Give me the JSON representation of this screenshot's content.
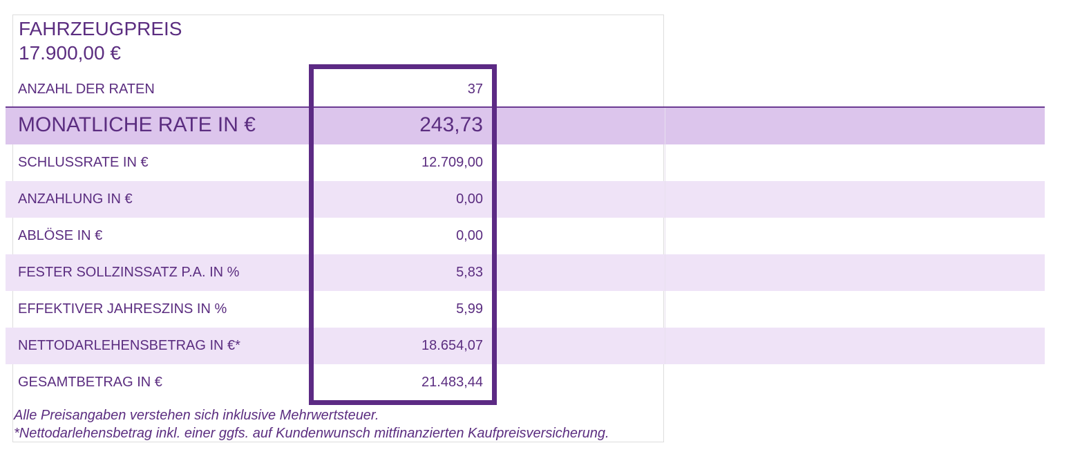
{
  "header": {
    "title": "FAHRZEUGPREIS",
    "price": "17.900,00 €"
  },
  "table": {
    "rows": [
      [
        "ANZAHL DER RATEN",
        "37"
      ],
      [
        "MONATLICHE RATE IN €",
        "243,73"
      ],
      [
        "SCHLUSSRATE IN €",
        "12.709,00"
      ],
      [
        "ANZAHLUNG IN €",
        "0,00"
      ],
      [
        "ABLÖSE IN €",
        "0,00"
      ],
      [
        "FESTER SOLLZINSSATZ P.A. IN %",
        "5,83"
      ],
      [
        "EFFEKTIVER JAHRESZINS IN %",
        "5,99"
      ],
      [
        "NETTODARLEHENSBETRAG IN €*",
        "18.654,07"
      ],
      [
        "GESAMTBETRAG IN €",
        "21.483,44"
      ]
    ]
  },
  "footnotes": [
    "Alle Preisangaben verstehen sich inklusive Mehrwertsteuer.",
    "*Nettodarlehensbetrag inkl. einer ggfs. auf Kundenwunsch mitfinanzierten Kaufpreisversicherung."
  ]
}
